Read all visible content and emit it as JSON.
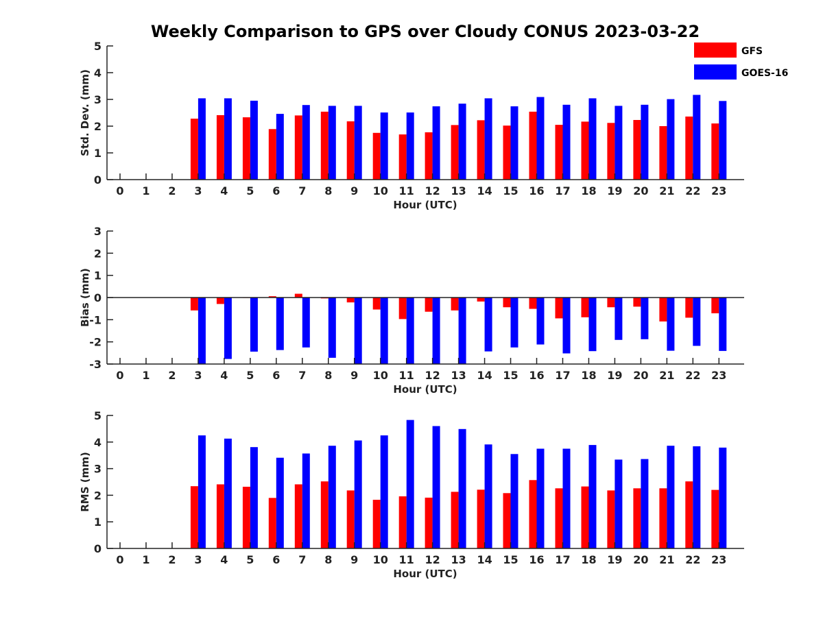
{
  "title": "Weekly Comparison to GPS over Cloudy CONUS 2023-03-22",
  "colors": {
    "GFS": "#ff0000",
    "GOES-16": "#0000ff"
  },
  "legend": {
    "placement": "top-right",
    "entries": [
      "GFS",
      "GOES-16"
    ]
  },
  "chart_data": [
    {
      "type": "bar",
      "categories": [
        "0",
        "1",
        "2",
        "3",
        "4",
        "5",
        "6",
        "7",
        "8",
        "9",
        "10",
        "11",
        "12",
        "13",
        "14",
        "15",
        "16",
        "17",
        "18",
        "19",
        "20",
        "21",
        "22",
        "23"
      ],
      "xlabel": "Hour (UTC)",
      "ylabel": "Std. Dev. (mm)",
      "ylim": [
        0,
        5
      ],
      "yticks": [
        "0",
        "1",
        "2",
        "3",
        "4",
        "5"
      ],
      "grid": false,
      "series": [
        {
          "name": "GFS",
          "values": [
            null,
            null,
            null,
            2.28,
            2.41,
            2.33,
            1.89,
            2.4,
            2.54,
            2.18,
            1.75,
            1.69,
            1.77,
            2.04,
            2.22,
            2.02,
            2.54,
            2.05,
            2.17,
            2.12,
            2.23,
            2.0,
            2.36,
            2.1
          ]
        },
        {
          "name": "GOES-16",
          "values": [
            null,
            null,
            null,
            3.04,
            3.04,
            2.95,
            2.46,
            2.79,
            2.76,
            2.76,
            2.51,
            2.51,
            2.74,
            2.84,
            3.04,
            2.74,
            3.09,
            2.8,
            3.04,
            2.76,
            2.8,
            3.01,
            3.17,
            2.94
          ]
        }
      ]
    },
    {
      "type": "bar",
      "categories": [
        "0",
        "1",
        "2",
        "3",
        "4",
        "5",
        "6",
        "7",
        "8",
        "9",
        "10",
        "11",
        "12",
        "13",
        "14",
        "15",
        "16",
        "17",
        "18",
        "19",
        "20",
        "21",
        "22",
        "23"
      ],
      "xlabel": "Hour (UTC)",
      "ylabel": "Bias (mm)",
      "ylim": [
        -3,
        3
      ],
      "yticks": [
        "-3",
        "-2",
        "-1",
        "0",
        "1",
        "2",
        "3"
      ],
      "grid": false,
      "series": [
        {
          "name": "GFS",
          "values": [
            null,
            null,
            null,
            -0.58,
            -0.29,
            -0.02,
            0.06,
            0.17,
            -0.04,
            -0.22,
            -0.54,
            -0.97,
            -0.64,
            -0.58,
            -0.18,
            -0.44,
            -0.51,
            -0.94,
            -0.89,
            -0.44,
            -0.41,
            -1.08,
            -0.91,
            -0.71
          ]
        },
        {
          "name": "GOES-16",
          "values": [
            null,
            null,
            null,
            -3.0,
            -2.77,
            -2.44,
            -2.37,
            -2.25,
            -2.72,
            -3.0,
            -3.0,
            -3.0,
            -3.0,
            -3.0,
            -2.43,
            -2.25,
            -2.12,
            -2.52,
            -2.42,
            -1.91,
            -1.88,
            -2.4,
            -2.18,
            -2.41
          ]
        }
      ]
    },
    {
      "type": "bar",
      "categories": [
        "0",
        "1",
        "2",
        "3",
        "4",
        "5",
        "6",
        "7",
        "8",
        "9",
        "10",
        "11",
        "12",
        "13",
        "14",
        "15",
        "16",
        "17",
        "18",
        "19",
        "20",
        "21",
        "22",
        "23"
      ],
      "xlabel": "Hour (UTC)",
      "ylabel": "RMS (mm)",
      "ylim": [
        0,
        5
      ],
      "yticks": [
        "0",
        "1",
        "2",
        "3",
        "4",
        "5"
      ],
      "grid": false,
      "series": [
        {
          "name": "GFS",
          "values": [
            null,
            null,
            null,
            2.34,
            2.41,
            2.32,
            1.9,
            2.41,
            2.52,
            2.18,
            1.83,
            1.96,
            1.91,
            2.13,
            2.21,
            2.08,
            2.57,
            2.26,
            2.33,
            2.18,
            2.26,
            2.26,
            2.52,
            2.2
          ]
        },
        {
          "name": "GOES-16",
          "values": [
            null,
            null,
            null,
            4.25,
            4.13,
            3.81,
            3.41,
            3.57,
            3.86,
            4.06,
            4.25,
            4.83,
            4.6,
            4.49,
            3.91,
            3.55,
            3.75,
            3.75,
            3.89,
            3.34,
            3.36,
            3.86,
            3.84,
            3.79
          ]
        }
      ]
    }
  ]
}
